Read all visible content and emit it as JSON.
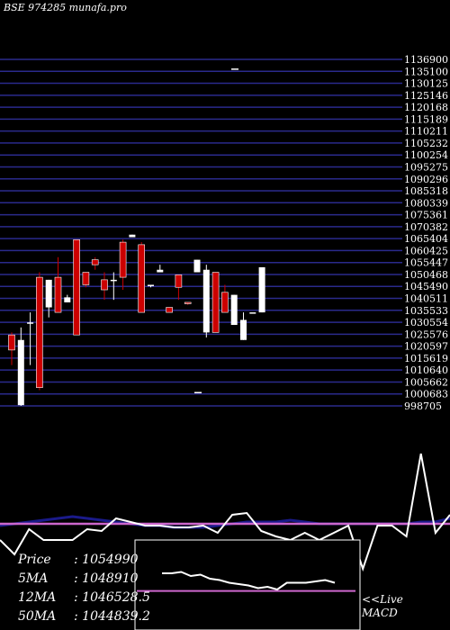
{
  "title": "BSE 974285 munafa.pro",
  "chart_data": {
    "type": "candlestick",
    "ylim": [
      998705,
      1136900
    ],
    "y_ticks": [
      "1136900",
      "1135100",
      "1130125",
      "1125146",
      "1120168",
      "1115189",
      "1110211",
      "1105232",
      "1100254",
      "1095275",
      "1090296",
      "1085318",
      "1080339",
      "1075361",
      "1070382",
      "1065404",
      "1060425",
      "1055447",
      "1050468",
      "1045490",
      "1040511",
      "1035533",
      "1030554",
      "1025576",
      "1020597",
      "1015619",
      "1010640",
      "1005662",
      "1000683",
      "998705"
    ],
    "candles": [
      {
        "o": 1027000,
        "h": 1028000,
        "l": 1015000,
        "c": 1021000
      },
      {
        "o": 999000,
        "h": 1030000,
        "l": 998705,
        "c": 1025000
      },
      {
        "o": 1032000,
        "h": 1036000,
        "l": 1015000,
        "c": 1032000
      },
      {
        "o": 1050000,
        "h": 1052000,
        "l": 1005000,
        "c": 1006000
      },
      {
        "o": 1038000,
        "h": 1049000,
        "l": 1034000,
        "c": 1049000
      },
      {
        "o": 1050000,
        "h": 1058000,
        "l": 1036000,
        "c": 1036000
      },
      {
        "o": 1040000,
        "h": 1043000,
        "l": 1040000,
        "c": 1042000
      },
      {
        "o": 1065000,
        "h": 1065000,
        "l": 1027000,
        "c": 1027000
      },
      {
        "o": 1052000,
        "h": 1052000,
        "l": 1046000,
        "c": 1047000
      },
      {
        "o": 1057000,
        "h": 1058000,
        "l": 1053000,
        "c": 1055000
      },
      {
        "o": 1049000,
        "h": 1052000,
        "l": 1041000,
        "c": 1045000
      },
      {
        "o": 1049000,
        "h": 1052000,
        "l": 1041000,
        "c": 1049000
      },
      {
        "o": 1064000,
        "h": 1065000,
        "l": 1045000,
        "c": 1050000
      },
      {
        "o": 1066000,
        "h": 1067000,
        "l": 1066000,
        "c": 1067000
      },
      {
        "o": 1063000,
        "h": 1064000,
        "l": 1036000,
        "c": 1036000
      },
      {
        "o": 1047000,
        "h": 1047000,
        "l": 1046000,
        "c": 1047000
      },
      {
        "o": 1052000,
        "h": 1055000,
        "l": 1052000,
        "c": 1053000
      },
      {
        "o": 1038000,
        "h": 1038000,
        "l": 1036000,
        "c": 1036000
      },
      {
        "o": 1051000,
        "h": 1051000,
        "l": 1041000,
        "c": 1046000
      },
      {
        "o": 1040000,
        "h": 1040000,
        "l": 1039000,
        "c": 1039500
      },
      {
        "o": 1052000,
        "h": 1057000,
        "l": 1052000,
        "c": 1057000
      },
      {
        "o": 1028000,
        "h": 1055000,
        "l": 1026000,
        "c": 1053000
      },
      {
        "o": 1052000,
        "h": 1052000,
        "l": 1028000,
        "c": 1028000
      },
      {
        "o": 1044000,
        "h": 1047000,
        "l": 1036000,
        "c": 1036000
      },
      {
        "o": 1031000,
        "h": 1043000,
        "l": 1031000,
        "c": 1043000
      },
      {
        "o": 1025000,
        "h": 1036000,
        "l": 1025000,
        "c": 1033000
      },
      {
        "o": 1036000,
        "h": 1036000,
        "l": 1036000,
        "c": 1036000
      },
      {
        "o": 1036000,
        "h": 1054000,
        "l": 1036000,
        "c": 1054000
      }
    ],
    "stray_ticks": [
      1133000,
      1004000
    ],
    "indicator": {
      "white": [
        -10,
        -18,
        -4,
        -10,
        -10,
        -10,
        -4,
        -5,
        2,
        0,
        -2,
        -2,
        -3,
        -3,
        -2,
        -6,
        4,
        5,
        -5,
        -8,
        -10,
        -6,
        -10,
        -6,
        -2,
        -26,
        -2,
        -2,
        -8,
        38,
        -6,
        4
      ],
      "navy": [
        -2,
        -1,
        0,
        1,
        2,
        3,
        2,
        1,
        0,
        -1,
        -2,
        -2,
        -3,
        -3,
        -3,
        -2,
        -1,
        0,
        0,
        0,
        1,
        0,
        -1,
        -1,
        -1,
        -1,
        -1,
        -1,
        -1,
        0,
        0,
        2
      ],
      "pink": [
        -1,
        -1,
        -1,
        -1,
        -1,
        -1,
        -1,
        -1,
        -1,
        -1,
        -1,
        -1,
        -1,
        -1,
        -1,
        -1,
        -1,
        -1,
        -1,
        -1,
        -1,
        -1,
        -1,
        -1,
        -1,
        -1,
        -1,
        -1,
        -1,
        -1,
        -1,
        -1
      ]
    },
    "macd_panel": {
      "white": [
        0,
        0,
        1,
        -2,
        -1,
        -4,
        -5,
        -7,
        -8,
        -9,
        -11,
        -10,
        -12,
        -7,
        -7,
        -7,
        -6,
        -5,
        -7
      ],
      "pink": [
        -3,
        -3,
        -3,
        -3,
        -3,
        -3,
        -3,
        -3,
        -3,
        -3,
        -3,
        -3,
        -3,
        -3,
        -3,
        -3,
        -3,
        -3,
        -3
      ]
    }
  },
  "stats": {
    "price_label": "Price",
    "price_sep": ":",
    "price": "1054990",
    "ma5_label": "5MA",
    "ma5_sep": ":",
    "ma5": "1048910",
    "ma12_label": "12MA",
    "ma12_sep": ":",
    "ma12": "1046528.5",
    "ma50_label": "50MA",
    "ma50_sep": ":",
    "ma50": "1044839.2"
  },
  "macd_label": {
    "line1": "<<Live",
    "line2": "MACD"
  },
  "colors": {
    "background": "#000000",
    "grid": "#2a2a8c",
    "up": "#ffffff",
    "down": "#cc0000",
    "pink": "#cc66cc",
    "navy": "#1a1a8a"
  }
}
